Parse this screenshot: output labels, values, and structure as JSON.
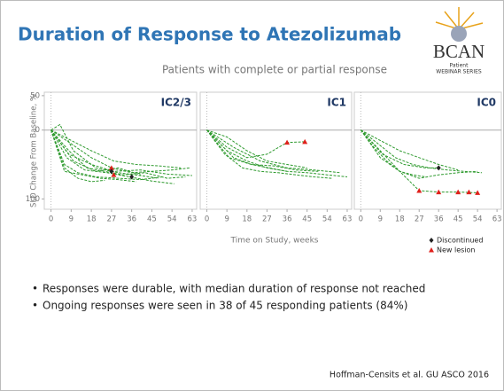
{
  "slide": {
    "title": "Duration of Response to Atezolizumab",
    "subtitle": "Patients with complete or partial response",
    "logo": {
      "name": "BCAN",
      "line1": "Patient",
      "line2": "WEBINAR SERIES"
    },
    "x_label": "Time on Study, weeks",
    "y_label": "SLD Change From Baseline, %",
    "legend": [
      {
        "label": "Discontinued",
        "marker": "diamond",
        "color": "#222222"
      },
      {
        "label": "New lesion",
        "marker": "triangle",
        "color": "#e0201b"
      }
    ],
    "bullets": [
      "Responses were durable, with median duration of response not reached",
      "Ongoing responses were seen in 38 of 45 responding patients (84%)"
    ],
    "citation": "Hoffman-Censits et al. GU ASCO 2016"
  },
  "chart_data": [
    {
      "type": "line",
      "title": "IC2/3",
      "line_color": "#2e9a2e",
      "xlim": [
        -3,
        65
      ],
      "xticks": [
        0,
        9,
        18,
        27,
        36,
        45,
        54,
        63
      ],
      "ylim": [
        -115,
        55
      ],
      "yticks": [
        50,
        0,
        {
          "value": -100,
          "label": "100"
        }
      ],
      "series": [
        {
          "x": [
            0,
            6,
            12,
            20,
            30,
            40,
            50
          ],
          "values": [
            0,
            -50,
            -62,
            -68,
            -70,
            -72,
            -68
          ]
        },
        {
          "x": [
            0,
            8,
            16,
            24,
            32,
            42,
            52,
            60
          ],
          "values": [
            0,
            -30,
            -55,
            -60,
            -65,
            -62,
            -70,
            -68
          ]
        },
        {
          "x": [
            0,
            4,
            10,
            20,
            30,
            40,
            48
          ],
          "values": [
            0,
            8,
            -30,
            -55,
            -62,
            -66,
            -70
          ]
        },
        {
          "x": [
            0,
            9,
            18,
            27,
            36,
            45,
            54,
            62
          ],
          "values": [
            0,
            -20,
            -40,
            -55,
            -62,
            -60,
            -58,
            -55
          ]
        },
        {
          "x": [
            0,
            6,
            14,
            22,
            30,
            38
          ],
          "values": [
            0,
            -60,
            -65,
            -70,
            -72,
            -75
          ]
        },
        {
          "x": [
            0,
            9,
            18,
            28,
            38,
            48,
            58
          ],
          "values": [
            0,
            -15,
            -30,
            -45,
            -50,
            -52,
            -55
          ]
        },
        {
          "x": [
            0,
            7,
            15,
            25,
            35,
            45,
            55
          ],
          "values": [
            0,
            -40,
            -58,
            -62,
            -68,
            -74,
            -78
          ]
        },
        {
          "x": [
            0,
            10,
            20,
            30,
            40
          ],
          "values": [
            0,
            -45,
            -60,
            -55,
            -65
          ]
        },
        {
          "x": [
            0,
            8,
            18,
            28,
            40,
            52,
            63
          ],
          "values": [
            0,
            -35,
            -50,
            -60,
            -58,
            -64,
            -66
          ]
        },
        {
          "x": [
            0,
            6,
            12,
            18,
            24
          ],
          "values": [
            0,
            -55,
            -70,
            -75,
            -73
          ]
        },
        {
          "type": "scatter",
          "marker": "triangle",
          "color": "#e0201b",
          "x": [
            27,
            28
          ],
          "values": [
            -55,
            -65
          ]
        },
        {
          "type": "scatter",
          "marker": "diamond",
          "color": "#222222",
          "x": [
            27,
            36
          ],
          "values": [
            -60,
            -68
          ]
        }
      ]
    },
    {
      "type": "line",
      "title": "IC1",
      "line_color": "#2e9a2e",
      "xlim": [
        -3,
        65
      ],
      "xticks": [
        0,
        9,
        18,
        27,
        36,
        45,
        54,
        63
      ],
      "ylim": [
        -115,
        55
      ],
      "series": [
        {
          "x": [
            0,
            9,
            18,
            27,
            36,
            44
          ],
          "values": [
            0,
            -25,
            -40,
            -35,
            -18,
            -17
          ]
        },
        {
          "x": [
            0,
            9,
            18,
            27,
            36,
            45,
            54,
            63
          ],
          "values": [
            0,
            -30,
            -45,
            -55,
            -60,
            -62,
            -65,
            -68
          ]
        },
        {
          "x": [
            0,
            8,
            16,
            24,
            32,
            40,
            48,
            56
          ],
          "values": [
            0,
            -35,
            -55,
            -60,
            -62,
            -65,
            -68,
            -70
          ]
        },
        {
          "x": [
            0,
            6,
            12,
            20,
            28,
            36
          ],
          "values": [
            0,
            -20,
            -40,
            -50,
            -55,
            -60
          ]
        },
        {
          "x": [
            0,
            9,
            18,
            27,
            36,
            45
          ],
          "values": [
            0,
            -10,
            -30,
            -45,
            -50,
            -55
          ]
        },
        {
          "x": [
            0,
            10,
            20,
            30,
            40,
            50
          ],
          "values": [
            0,
            -40,
            -50,
            -52,
            -58,
            -60
          ]
        },
        {
          "x": [
            0,
            12,
            24,
            36,
            48,
            60
          ],
          "values": [
            0,
            -25,
            -45,
            -55,
            -58,
            -62
          ]
        },
        {
          "type": "scatter",
          "marker": "triangle",
          "color": "#e0201b",
          "x": [
            36,
            44
          ],
          "values": [
            -18,
            -17
          ]
        }
      ]
    },
    {
      "type": "line",
      "title": "IC0",
      "line_color": "#2e9a2e",
      "xlim": [
        -3,
        65
      ],
      "xticks": [
        0,
        9,
        18,
        27,
        36,
        45,
        54,
        63
      ],
      "ylim": [
        -115,
        55
      ],
      "series": [
        {
          "x": [
            0,
            9,
            18,
            27,
            36,
            45,
            54
          ],
          "values": [
            0,
            -30,
            -60,
            -70,
            -65,
            -62,
            -60
          ]
        },
        {
          "x": [
            0,
            9,
            18,
            27,
            36,
            45,
            54
          ],
          "values": [
            0,
            -40,
            -60,
            -88,
            -90,
            -90,
            -91
          ]
        },
        {
          "x": [
            0,
            8,
            16,
            24,
            32,
            40,
            48,
            56
          ],
          "values": [
            0,
            -20,
            -40,
            -50,
            -55,
            -58,
            -60,
            -62
          ]
        },
        {
          "x": [
            0,
            10,
            20,
            30,
            36
          ],
          "values": [
            0,
            -35,
            -50,
            -55,
            -55
          ]
        },
        {
          "x": [
            0,
            6,
            12,
            18,
            24,
            30
          ],
          "values": [
            0,
            -25,
            -45,
            -60,
            -65,
            -68
          ]
        },
        {
          "x": [
            0,
            9,
            18,
            27,
            36,
            45
          ],
          "values": [
            0,
            -15,
            -30,
            -40,
            -50,
            -58
          ]
        },
        {
          "type": "scatter",
          "marker": "triangle",
          "color": "#e0201b",
          "x": [
            27,
            36,
            45,
            50,
            54
          ],
          "values": [
            -88,
            -90,
            -90,
            -90,
            -91
          ]
        },
        {
          "type": "scatter",
          "marker": "diamond",
          "color": "#222222",
          "x": [
            36
          ],
          "values": [
            -55
          ]
        }
      ]
    }
  ]
}
